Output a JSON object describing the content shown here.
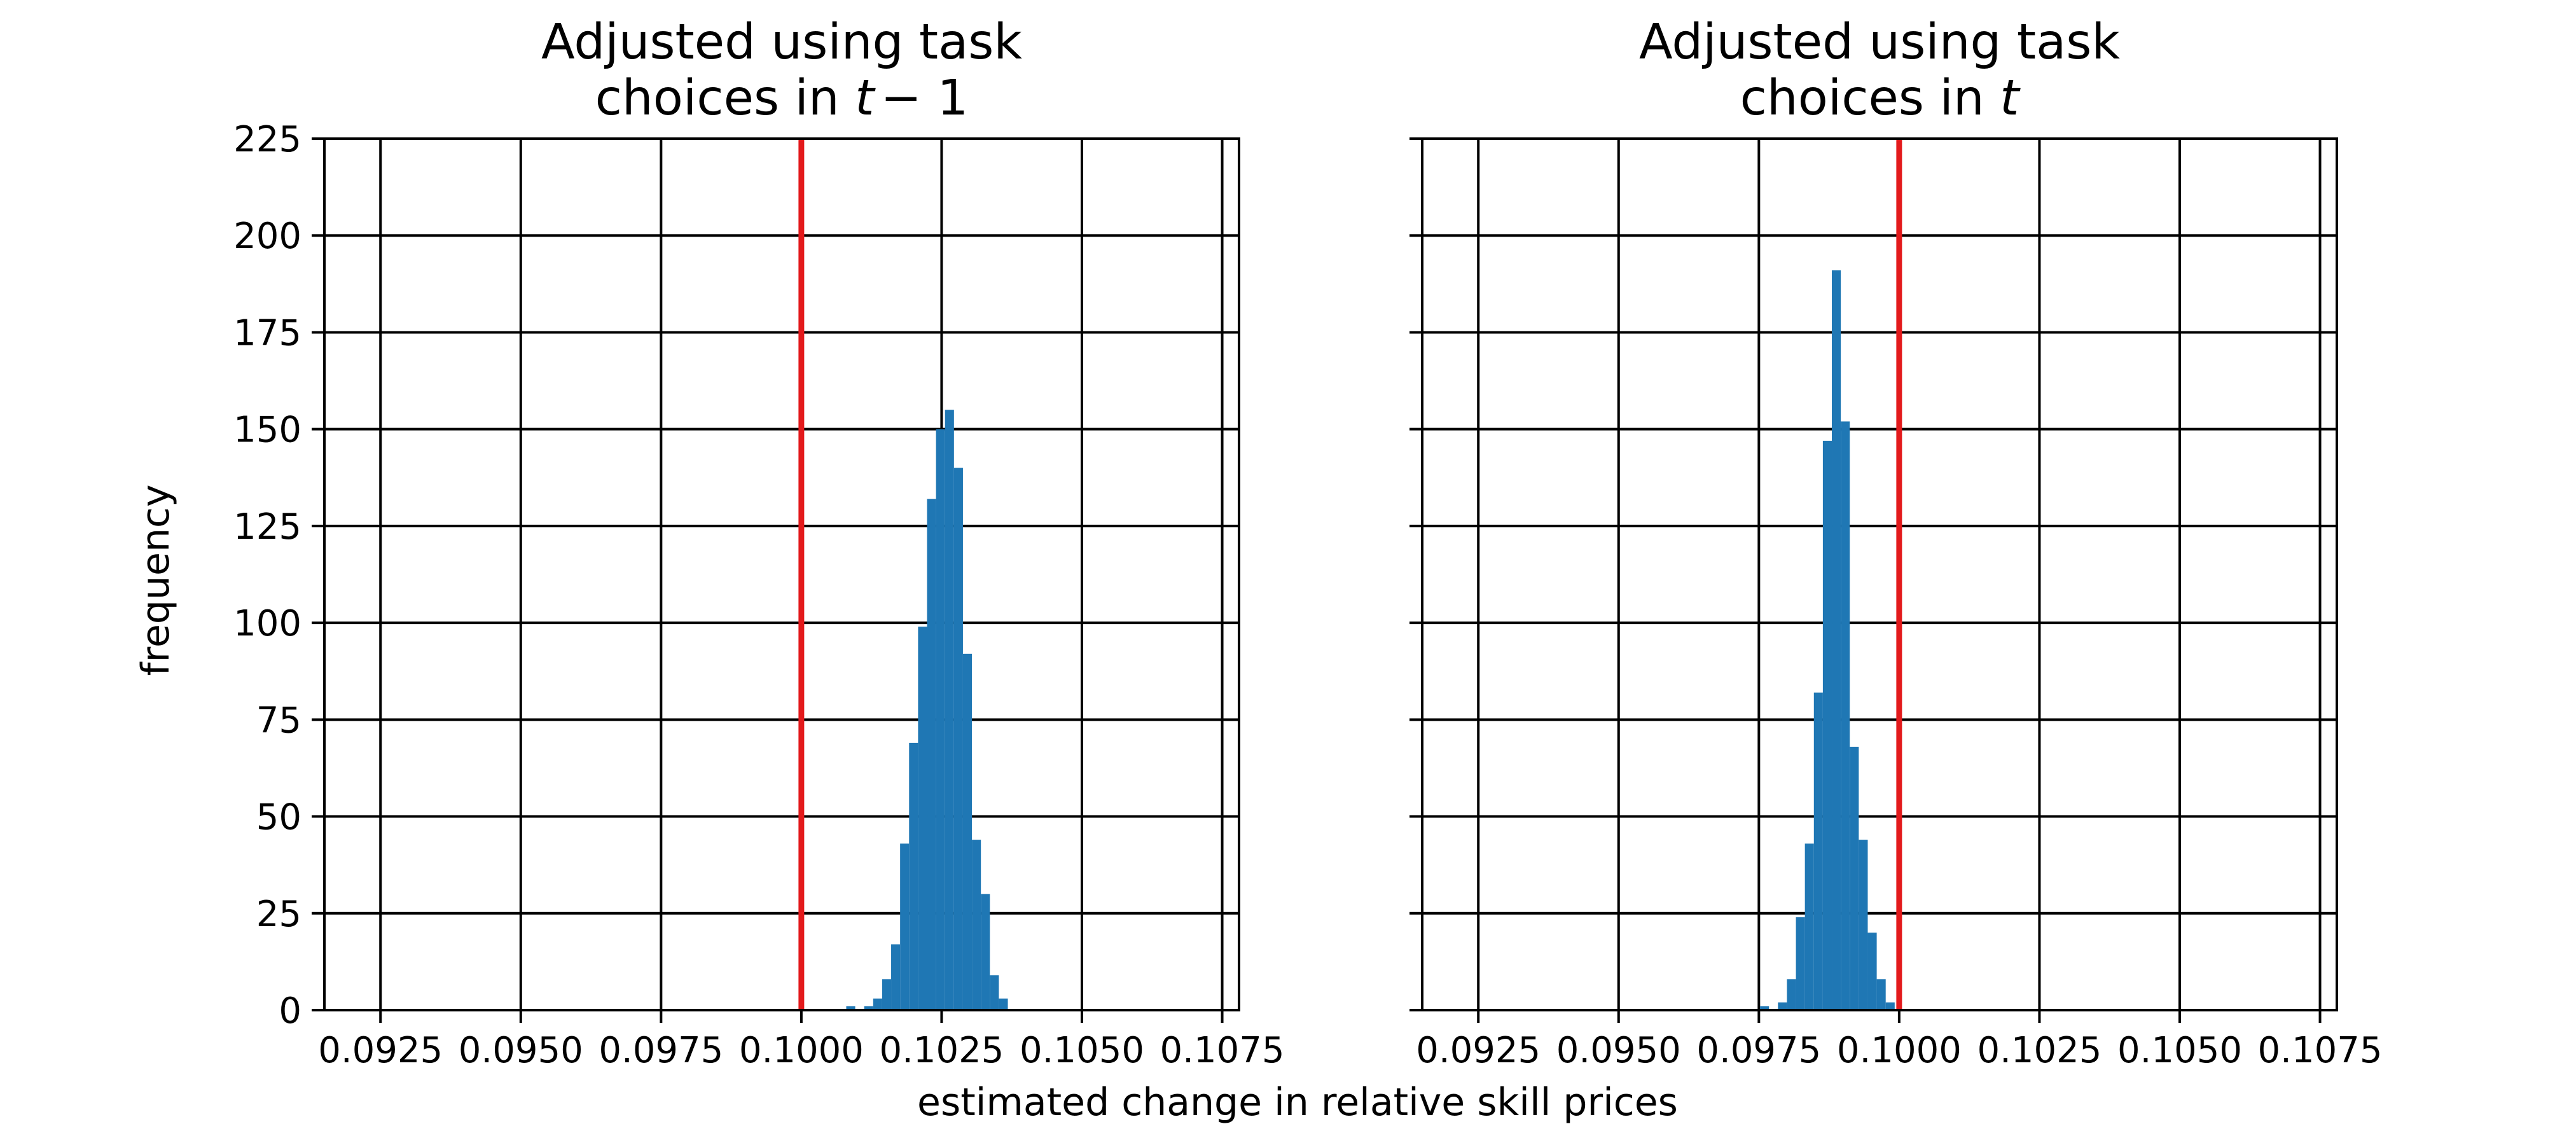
{
  "figure": {
    "shared_xlabel": "estimated change in relative skill prices",
    "ylabel": "frequency"
  },
  "colors": {
    "bar": "#1f77b4",
    "reference_line": "#e31a1c",
    "grid": "#000000",
    "axes": "#000000"
  },
  "chart_data": [
    {
      "type": "bar",
      "title_line1": "Adjusted using task",
      "title_line2_prefix": "choices in ",
      "title_line2_math": "t",
      "title_line2_math_suffix": "− 1",
      "xlabel": "estimated change in relative skill prices",
      "ylabel": "frequency",
      "xlim": [
        0.0915,
        0.1078
      ],
      "ylim": [
        0,
        225
      ],
      "x_ticks": [
        0.0925,
        0.095,
        0.0975,
        0.1,
        0.1025,
        0.105,
        0.1075
      ],
      "x_tick_labels": [
        "0.0925",
        "0.0950",
        "0.0975",
        "0.1000",
        "0.1025",
        "0.1050",
        "0.1075"
      ],
      "y_ticks": [
        0,
        25,
        50,
        75,
        100,
        125,
        150,
        175,
        200,
        225
      ],
      "y_tick_labels": [
        "0",
        "25",
        "50",
        "75",
        "100",
        "125",
        "150",
        "175",
        "200",
        "225"
      ],
      "show_y_tick_labels": true,
      "grid": true,
      "reference_line_x": 0.1,
      "bin_width": 0.00016,
      "bins": [
        {
          "x": 0.1008,
          "y": 1
        },
        {
          "x": 0.10096,
          "y": 0
        },
        {
          "x": 0.10112,
          "y": 1
        },
        {
          "x": 0.10128,
          "y": 3
        },
        {
          "x": 0.10144,
          "y": 8
        },
        {
          "x": 0.1016,
          "y": 17
        },
        {
          "x": 0.10176,
          "y": 43
        },
        {
          "x": 0.10192,
          "y": 69
        },
        {
          "x": 0.10208,
          "y": 99
        },
        {
          "x": 0.10224,
          "y": 132
        },
        {
          "x": 0.1024,
          "y": 150
        },
        {
          "x": 0.10256,
          "y": 155
        },
        {
          "x": 0.10272,
          "y": 140
        },
        {
          "x": 0.10288,
          "y": 92
        },
        {
          "x": 0.10304,
          "y": 44
        },
        {
          "x": 0.1032,
          "y": 30
        },
        {
          "x": 0.10336,
          "y": 9
        },
        {
          "x": 0.10352,
          "y": 3
        }
      ]
    },
    {
      "type": "bar",
      "title_line1": "Adjusted using task",
      "title_line2_prefix": "choices in ",
      "title_line2_math": "t",
      "title_line2_math_suffix": "",
      "xlabel": "estimated change in relative skill prices",
      "ylabel": "frequency",
      "xlim": [
        0.0915,
        0.1078
      ],
      "ylim": [
        0,
        225
      ],
      "x_ticks": [
        0.0925,
        0.095,
        0.0975,
        0.1,
        0.1025,
        0.105,
        0.1075
      ],
      "x_tick_labels": [
        "0.0925",
        "0.0950",
        "0.0975",
        "0.1000",
        "0.1025",
        "0.1050",
        "0.1075"
      ],
      "y_ticks": [
        0,
        25,
        50,
        75,
        100,
        125,
        150,
        175,
        200,
        225
      ],
      "y_tick_labels": [],
      "show_y_tick_labels": false,
      "grid": true,
      "reference_line_x": 0.1,
      "bin_width": 0.00016,
      "bins": [
        {
          "x": 0.09752,
          "y": 1
        },
        {
          "x": 0.09768,
          "y": 0
        },
        {
          "x": 0.09784,
          "y": 2
        },
        {
          "x": 0.098,
          "y": 8
        },
        {
          "x": 0.09816,
          "y": 24
        },
        {
          "x": 0.09832,
          "y": 43
        },
        {
          "x": 0.09848,
          "y": 82
        },
        {
          "x": 0.09864,
          "y": 147
        },
        {
          "x": 0.0988,
          "y": 191
        },
        {
          "x": 0.09896,
          "y": 152
        },
        {
          "x": 0.09912,
          "y": 68
        },
        {
          "x": 0.09928,
          "y": 44
        },
        {
          "x": 0.09944,
          "y": 20
        },
        {
          "x": 0.0996,
          "y": 8
        },
        {
          "x": 0.09976,
          "y": 2
        }
      ]
    }
  ]
}
